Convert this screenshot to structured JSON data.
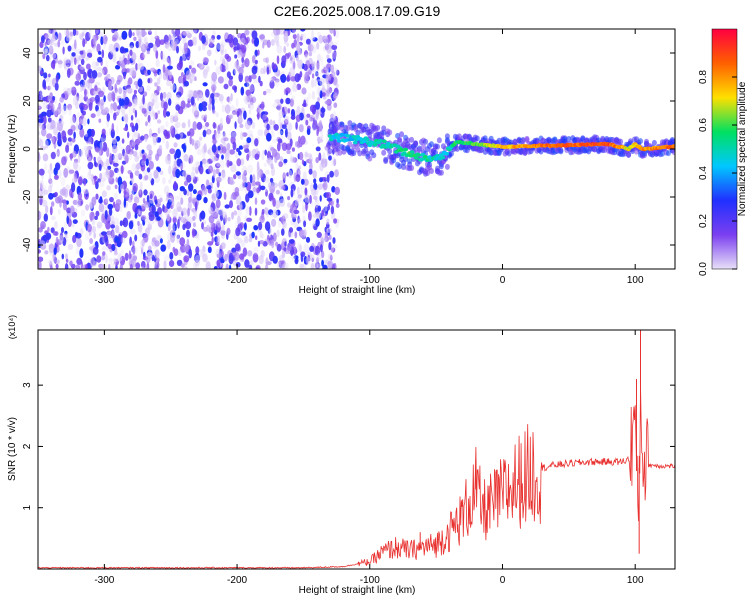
{
  "title": "C2E6.2025.008.17.09.G19",
  "colors": {
    "background": "#ffffff",
    "snr_line": "#e8312f",
    "scatter_noise": "#8c3cf0",
    "axis": "#000000"
  },
  "chart_data": [
    {
      "type": "heatmap",
      "title": "C2E6.2025.008.17.09.G19",
      "xlabel": "Height of straight line (km)",
      "ylabel": "Frequency (Hz)",
      "xlim": [
        -350,
        130
      ],
      "ylim": [
        -50,
        50
      ],
      "xticks": [
        -300,
        -200,
        -100,
        0,
        100
      ],
      "yticks": [
        -40,
        -20,
        0,
        20,
        40
      ],
      "grid": false,
      "colorbar": {
        "label": "Normalized spectral amplitude",
        "range": [
          0.0,
          1.0
        ],
        "ticks": [
          "0.0",
          "0.2",
          "0.4",
          "0.6",
          "0.8"
        ],
        "colormap": [
          "#e8e0f8",
          "#7b3ff0",
          "#2030ff",
          "#00c8ff",
          "#00e060",
          "#ffe000",
          "#ff6000",
          "#ff0040"
        ]
      },
      "ridge": {
        "x": [
          -130,
          -110,
          -90,
          -70,
          -55,
          -45,
          -35,
          -20,
          0,
          40,
          80,
          95,
          100,
          105,
          130
        ],
        "y": [
          5,
          4,
          2,
          -2,
          -4,
          -3,
          3,
          2,
          1,
          1.5,
          2,
          0,
          2,
          0,
          1
        ],
        "amp": [
          0.45,
          0.45,
          0.5,
          0.55,
          0.5,
          0.45,
          0.55,
          0.6,
          0.75,
          0.85,
          0.9,
          0.7,
          0.75,
          0.8,
          0.85
        ]
      },
      "noise_region": {
        "x": [
          -350,
          -130
        ],
        "y": [
          -50,
          50
        ],
        "amp_range": [
          0.0,
          0.3
        ]
      }
    },
    {
      "type": "line",
      "title": "",
      "xlabel": "Height of straight line (km)",
      "ylabel": "SNR (10 * v/v)",
      "yscale_label": "(x10⁴)",
      "xlim": [
        -350,
        130
      ],
      "ylim": [
        0,
        3.9
      ],
      "xticks": [
        -300,
        -200,
        -100,
        0,
        100
      ],
      "yticks": [
        1,
        2,
        3
      ],
      "grid": false,
      "series": [
        {
          "x": [
            -350,
            -300,
            -250,
            -200,
            -150,
            -120,
            -100,
            -90,
            -80,
            -70,
            -60,
            -50,
            -40,
            -30,
            -25,
            -20,
            -15,
            -10,
            0,
            10,
            20,
            30,
            40,
            50,
            60,
            70,
            80,
            90,
            96,
            100,
            102,
            104,
            106,
            110,
            120,
            130
          ],
          "y": [
            0.02,
            0.02,
            0.02,
            0.02,
            0.02,
            0.04,
            0.12,
            0.28,
            0.35,
            0.3,
            0.35,
            0.4,
            0.6,
            0.85,
            1.1,
            1.3,
            0.95,
            1.0,
            1.2,
            1.4,
            1.55,
            1.65,
            1.7,
            1.72,
            1.74,
            1.75,
            1.75,
            1.75,
            1.8,
            2.6,
            0.6,
            2.7,
            1.8,
            1.7,
            1.68,
            1.68
          ],
          "spikes": [
            {
              "x": -62,
              "y": 0.6
            },
            {
              "x": -20,
              "y": 1.8
            },
            {
              "x": 101,
              "y": 3.1
            },
            {
              "x": 104,
              "y": 3.9
            },
            {
              "x": 103,
              "y": 0.25
            }
          ]
        }
      ]
    }
  ]
}
